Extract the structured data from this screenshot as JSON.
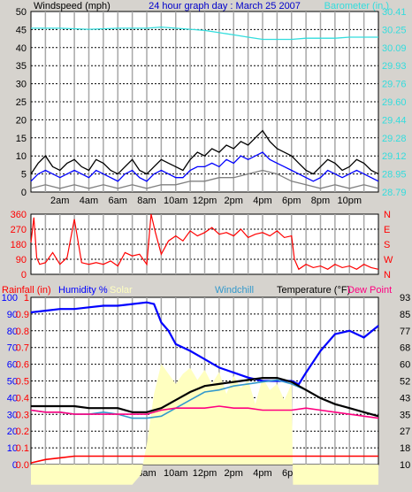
{
  "colors": {
    "background": "#d6d3ce",
    "plot_background": "#ffffff",
    "grid_horizontal": "#000000",
    "grid_vertical": "#a8a8a8",
    "wind_speed": "#0000ff",
    "wind_gust": "#000000",
    "wind_avg": "#808080",
    "barometer": "#33dddd",
    "wind_direction": "#ff0000",
    "rainfall": "#ff0000",
    "humidity": "#0000ff",
    "solar": "#ffffc0",
    "windchill": "#3399cc",
    "temperature": "#000000",
    "dewpoint": "#ff0080"
  },
  "chart_data": [
    {
      "type": "line",
      "title": "24 hour graph day : March 25 2007",
      "ylabel": "Windspeed (mph)",
      "y2label": "Barometer (in.)",
      "x_ticks": [
        "2am",
        "4am",
        "6am",
        "8am",
        "10am",
        "12pm",
        "2pm",
        "4pm",
        "6pm",
        "8pm",
        "10pm"
      ],
      "xlim_hours": [
        0,
        24
      ],
      "ylim": [
        0,
        50
      ],
      "yticks": [
        "0",
        "5",
        "10",
        "15",
        "20",
        "25",
        "30",
        "35",
        "40",
        "45",
        "50"
      ],
      "y2lim": [
        28.79,
        30.41
      ],
      "y2ticks": [
        "28.79",
        "28.95",
        "29.12",
        "29.28",
        "29.44",
        "29.60",
        "29.76",
        "29.93",
        "30.09",
        "30.25",
        "30.41"
      ],
      "grid": true,
      "series": [
        {
          "key": "barometer",
          "axis": "right",
          "x": [
            0,
            2,
            4,
            6,
            8,
            9,
            10,
            12,
            13,
            14,
            15,
            16,
            17,
            18,
            19,
            20,
            21,
            22,
            23,
            24
          ],
          "values": [
            30.26,
            30.26,
            30.25,
            30.26,
            30.26,
            30.27,
            30.26,
            30.24,
            30.22,
            30.2,
            30.18,
            30.16,
            30.16,
            30.16,
            30.17,
            30.17,
            30.17,
            30.18,
            30.18,
            30.18
          ]
        },
        {
          "key": "wind_gust",
          "axis": "left",
          "x": [
            0,
            0.5,
            1,
            1.5,
            2,
            2.5,
            3,
            3.5,
            4,
            4.5,
            5,
            5.5,
            6,
            6.5,
            7,
            7.5,
            8,
            8.5,
            9,
            9.5,
            10,
            10.5,
            11,
            11.5,
            12,
            12.5,
            13,
            13.5,
            14,
            14.5,
            15,
            15.5,
            16,
            16.5,
            17,
            17.5,
            18,
            18.5,
            19,
            19.5,
            20,
            20.5,
            21,
            21.5,
            22,
            22.5,
            23,
            23.5,
            24
          ],
          "values": [
            5,
            8,
            10,
            7,
            6,
            8,
            9,
            7,
            6,
            9,
            8,
            6,
            5,
            7,
            9,
            6,
            5,
            7,
            9,
            8,
            7,
            6,
            9,
            11,
            10,
            12,
            11,
            13,
            12,
            14,
            13,
            15,
            17,
            14,
            12,
            11,
            10,
            8,
            6,
            5,
            7,
            9,
            8,
            6,
            7,
            9,
            8,
            6,
            5
          ]
        },
        {
          "key": "wind_speed",
          "axis": "left",
          "x": [
            0,
            0.5,
            1,
            1.5,
            2,
            2.5,
            3,
            3.5,
            4,
            4.5,
            5,
            5.5,
            6,
            6.5,
            7,
            7.5,
            8,
            8.5,
            9,
            9.5,
            10,
            10.5,
            11,
            11.5,
            12,
            12.5,
            13,
            13.5,
            14,
            14.5,
            15,
            15.5,
            16,
            16.5,
            17,
            17.5,
            18,
            18.5,
            19,
            19.5,
            20,
            20.5,
            21,
            21.5,
            22,
            22.5,
            23,
            23.5,
            24
          ],
          "values": [
            3,
            5,
            6,
            5,
            4,
            5,
            6,
            5,
            4,
            6,
            5,
            4,
            3,
            5,
            6,
            4,
            3,
            5,
            6,
            5,
            4,
            4,
            6,
            7,
            7,
            8,
            7,
            9,
            8,
            10,
            9,
            10,
            11,
            9,
            8,
            7,
            6,
            5,
            4,
            3,
            4,
            6,
            5,
            4,
            5,
            6,
            5,
            4,
            3
          ]
        },
        {
          "key": "wind_avg",
          "axis": "left",
          "x": [
            0,
            1,
            2,
            3,
            4,
            5,
            6,
            7,
            8,
            9,
            10,
            11,
            12,
            13,
            14,
            15,
            16,
            17,
            18,
            19,
            20,
            21,
            22,
            23,
            24
          ],
          "values": [
            1,
            2,
            1,
            2,
            1,
            2,
            1,
            2,
            1,
            2,
            2,
            3,
            3,
            4,
            4,
            5,
            6,
            5,
            3,
            2,
            1,
            2,
            1,
            2,
            1
          ]
        }
      ]
    },
    {
      "type": "line",
      "ylabel_left_ticks": [
        "0",
        "90",
        "180",
        "270",
        "360"
      ],
      "ylabel_right_ticks": [
        "N",
        "W",
        "S",
        "E",
        "N"
      ],
      "ylim": [
        0,
        360
      ],
      "xlim_hours": [
        0,
        24
      ],
      "x_ticks": [
        "2am",
        "4am",
        "6am",
        "8am",
        "10am",
        "12pm",
        "2pm",
        "4pm",
        "6pm",
        "8pm",
        "10pm"
      ],
      "grid": true,
      "series": [
        {
          "key": "wind_direction",
          "x": [
            0,
            0.2,
            0.4,
            0.6,
            1.0,
            1.5,
            2,
            2.5,
            3,
            3.5,
            4,
            4.5,
            5,
            5.5,
            6,
            6.5,
            7,
            7.5,
            8,
            8.3,
            8.6,
            9,
            9.5,
            10,
            10.5,
            11,
            11.5,
            12,
            12.5,
            13,
            13.5,
            14,
            14.5,
            15,
            15.5,
            16,
            16.5,
            17,
            17.5,
            18,
            18.2,
            18.5,
            19,
            19.5,
            20,
            20.5,
            21,
            21.5,
            22,
            22.5,
            23,
            23.5,
            24
          ],
          "values": [
            190,
            340,
            100,
            60,
            70,
            130,
            60,
            100,
            330,
            70,
            60,
            70,
            60,
            80,
            50,
            130,
            110,
            120,
            60,
            360,
            250,
            120,
            200,
            230,
            200,
            260,
            230,
            250,
            280,
            240,
            250,
            230,
            270,
            220,
            240,
            250,
            230,
            260,
            220,
            230,
            90,
            30,
            60,
            40,
            50,
            30,
            60,
            40,
            50,
            30,
            60,
            40,
            30
          ]
        }
      ]
    },
    {
      "type": "line",
      "legend": [
        "Rainfall (in)",
        "Humidity %",
        "Solar",
        "Windchill",
        "Temperature (°F)",
        "Dew Point"
      ],
      "left_humidity_ticks": [
        "0",
        "10",
        "20",
        "30",
        "40",
        "50",
        "60",
        "70",
        "80",
        "90",
        "100"
      ],
      "left_rain_ticks": [
        "0.0",
        "0.1",
        "0.2",
        "0.3",
        "0.4",
        "0.5",
        "0.6",
        "0.7",
        "0.8",
        "0.9",
        "1"
      ],
      "right_temp_ticks": [
        "10",
        "18",
        "27",
        "35",
        "43",
        "52",
        "60",
        "68",
        "77",
        "85",
        "93"
      ],
      "humidity_lim": [
        0,
        100
      ],
      "temp_lim": [
        10,
        93
      ],
      "xlim_hours": [
        0,
        24
      ],
      "x_ticks": [
        "2am",
        "4am",
        "6am",
        "8am",
        "10am",
        "12pm",
        "2pm",
        "4pm",
        "6pm",
        "8pm",
        "10pm"
      ],
      "grid": true,
      "series": [
        {
          "key": "solar",
          "x": [
            0,
            6,
            7,
            7.6,
            8,
            8.5,
            9,
            9.5,
            10,
            10.5,
            11,
            11.5,
            12,
            12.5,
            13,
            13.5,
            14,
            14.5,
            15,
            15.5,
            16,
            16.5,
            17,
            17.5,
            18,
            18.1,
            24
          ],
          "values": [
            0,
            0,
            0,
            5,
            20,
            45,
            60,
            55,
            50,
            55,
            58,
            52,
            57,
            50,
            56,
            45,
            54,
            48,
            52,
            40,
            53,
            47,
            50,
            42,
            50,
            0,
            0
          ]
        },
        {
          "key": "rainfall",
          "x": [
            0,
            1,
            2,
            3,
            4,
            5,
            6,
            7,
            8,
            9,
            10,
            11,
            12,
            13,
            14,
            15,
            16,
            17,
            18,
            19,
            20,
            21,
            22,
            23,
            24
          ],
          "values": [
            0.01,
            0.03,
            0.04,
            0.05,
            0.05,
            0.05,
            0.05,
            0.05,
            0.05,
            0.05,
            0.05,
            0.05,
            0.05,
            0.05,
            0.05,
            0.05,
            0.05,
            0.05,
            0.05,
            0.05,
            0.05,
            0.05,
            0.05,
            0.05,
            0.05
          ]
        },
        {
          "key": "humidity",
          "x": [
            0,
            1,
            2,
            3,
            4,
            5,
            6,
            7,
            8,
            8.5,
            9,
            9.5,
            10,
            11,
            12,
            13,
            14,
            15,
            16,
            17,
            18,
            18.5,
            19,
            20,
            21,
            22,
            23,
            24
          ],
          "values": [
            91,
            92,
            93,
            93,
            94,
            95,
            95,
            96,
            97,
            96,
            85,
            80,
            72,
            68,
            63,
            58,
            55,
            52,
            50,
            50,
            50,
            48,
            55,
            68,
            78,
            80,
            76,
            83
          ]
        },
        {
          "key": "windchill",
          "x": [
            0,
            1,
            2,
            3,
            4,
            5,
            6,
            7,
            8,
            9,
            10,
            11,
            12,
            13,
            14,
            15,
            16,
            17,
            18,
            19,
            20,
            21,
            22,
            23,
            24
          ],
          "values": [
            37,
            36,
            36,
            35,
            35,
            36,
            35,
            33,
            33,
            34,
            38,
            42,
            46,
            47,
            49,
            50,
            51,
            52,
            50,
            47,
            43,
            40,
            38,
            36,
            34
          ]
        },
        {
          "key": "temperature",
          "x": [
            0,
            1,
            2,
            3,
            4,
            5,
            6,
            7,
            8,
            9,
            10,
            11,
            12,
            13,
            14,
            15,
            16,
            17,
            18,
            19,
            20,
            21,
            22,
            23,
            24
          ],
          "values": [
            39,
            39,
            39,
            39,
            38,
            38,
            38,
            36,
            36,
            38,
            42,
            46,
            49,
            50,
            51,
            52,
            53,
            53,
            51,
            47,
            43,
            40,
            38,
            36,
            34
          ]
        },
        {
          "key": "dewpoint",
          "x": [
            0,
            1,
            2,
            3,
            4,
            5,
            6,
            7,
            8,
            9,
            10,
            11,
            12,
            13,
            14,
            15,
            16,
            17,
            18,
            19,
            20,
            21,
            22,
            23,
            24
          ],
          "values": [
            37,
            36,
            36,
            35,
            35,
            35,
            35,
            35,
            35,
            37,
            38,
            38,
            38,
            39,
            38,
            38,
            37,
            37,
            37,
            38,
            37,
            36,
            35,
            34,
            33
          ]
        }
      ]
    }
  ]
}
